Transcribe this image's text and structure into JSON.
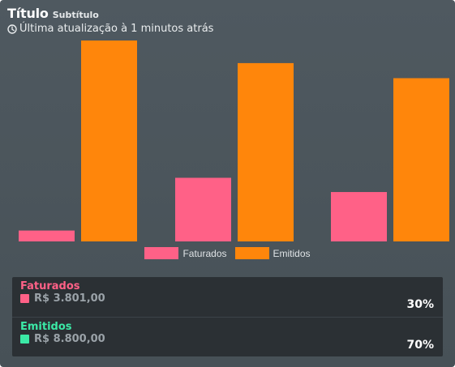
{
  "header": {
    "title": "Título",
    "subtitle": "Subtítulo",
    "updated_text": "Última atualização à 1 minutos atrás",
    "clock_icon": "clock-icon"
  },
  "colors": {
    "faturados": "#ff6187",
    "emitidos": "#ff860b",
    "emitidos_summary": "#3be9a6",
    "background": "#4b555b"
  },
  "chart_data": {
    "type": "bar",
    "categories": [
      "",
      "",
      ""
    ],
    "series": [
      {
        "name": "Faturados",
        "values": [
          1.3,
          7.6,
          5.9
        ]
      },
      {
        "name": "Emitidos",
        "values": [
          24.0,
          21.3,
          19.5
        ]
      }
    ],
    "ylim": [
      0,
      24.0
    ],
    "grid": false,
    "legend_position": "bottom"
  },
  "summary": [
    {
      "label": "Faturados",
      "value": "R$ 3.801,00",
      "percent": "30%"
    },
    {
      "label": "Emitidos",
      "value": "R$ 8.800,00",
      "percent": "70%"
    }
  ]
}
